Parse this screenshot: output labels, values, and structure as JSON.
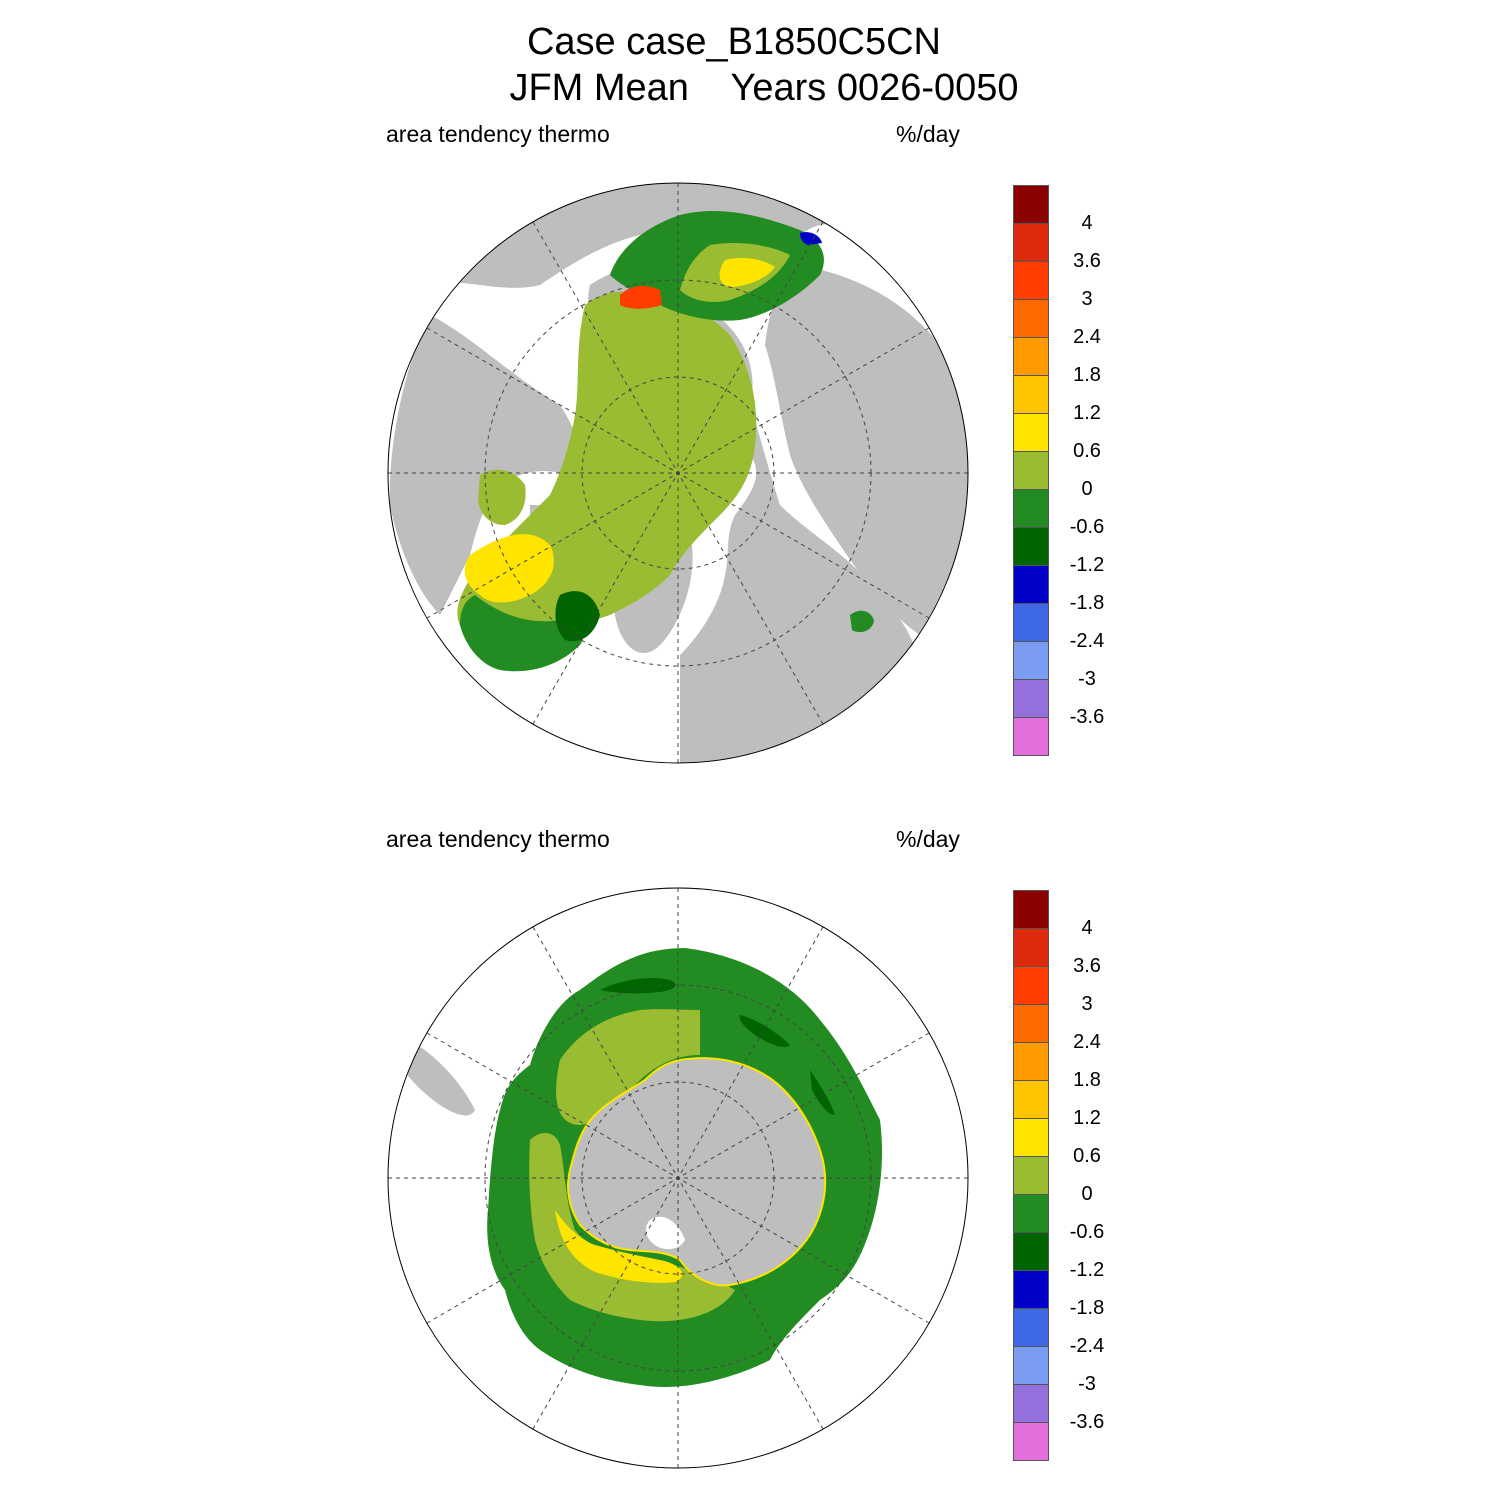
{
  "title": {
    "line1": "Case case_B1850C5CN",
    "line2": "JFM Mean    Years 0026-0050"
  },
  "panels": [
    {
      "hemisphere": "north",
      "left_label": "area tendency thermo",
      "right_label": "%/day"
    },
    {
      "hemisphere": "south",
      "left_label": "area tendency thermo",
      "right_label": "%/day"
    }
  ],
  "colorbar": {
    "colors": [
      "#8b0000",
      "#dd2a0c",
      "#ff3d00",
      "#ff6a00",
      "#ff9a00",
      "#ffc400",
      "#ffe400",
      "#9abc32",
      "#228b22",
      "#006400",
      "#0000c8",
      "#3f68e6",
      "#7a9cf2",
      "#9370db",
      "#e36fdc"
    ],
    "tick_labels": [
      "4",
      "3.6",
      "3",
      "2.4",
      "1.8",
      "1.2",
      "0.6",
      "0",
      "-0.6",
      "-1.2",
      "-1.8",
      "-2.4",
      "-3",
      "-3.6"
    ]
  },
  "map_colors": {
    "land": "#bebebe",
    "ocean": "#ffffff",
    "grid": "#444444"
  }
}
